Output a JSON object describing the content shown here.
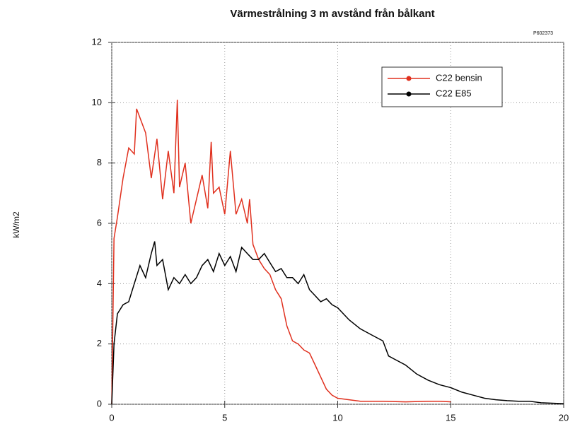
{
  "chart_data": {
    "type": "line",
    "title": "Värmestrålning 3 m avstånd från bålkant",
    "annotation": "P602373",
    "ylabel": "kW/m2",
    "xlim": [
      0,
      20
    ],
    "xticks": [
      0,
      5,
      10,
      15,
      20
    ],
    "ylim": [
      0,
      12
    ],
    "yticks": [
      0,
      2,
      4,
      6,
      8,
      10,
      12
    ],
    "grid": true,
    "legend": "upper right",
    "series": [
      {
        "name": "C22 bensin",
        "color": "#e0301e",
        "x": [
          0,
          0.1,
          0.25,
          0.5,
          0.75,
          1.0,
          1.1,
          1.25,
          1.5,
          1.75,
          2.0,
          2.25,
          2.5,
          2.75,
          2.9,
          3.0,
          3.25,
          3.5,
          3.75,
          4.0,
          4.25,
          4.4,
          4.5,
          4.75,
          5.0,
          5.25,
          5.5,
          5.75,
          6.0,
          6.1,
          6.25,
          6.5,
          6.75,
          7.0,
          7.25,
          7.5,
          7.75,
          8.0,
          8.25,
          8.5,
          8.75,
          9.0,
          9.25,
          9.5,
          9.75,
          10.0,
          10.5,
          11,
          12,
          13,
          14,
          14.5,
          15
        ],
        "values": [
          0,
          5.5,
          6.2,
          7.5,
          8.5,
          8.3,
          9.8,
          9.5,
          9.0,
          7.5,
          8.8,
          6.8,
          8.4,
          7.0,
          10.1,
          7.2,
          8.0,
          6.0,
          6.8,
          7.6,
          6.5,
          8.7,
          7.0,
          7.2,
          6.3,
          8.4,
          6.3,
          6.8,
          6.0,
          6.8,
          5.3,
          4.8,
          4.5,
          4.3,
          3.8,
          3.5,
          2.6,
          2.1,
          2.0,
          1.8,
          1.7,
          1.3,
          0.9,
          0.5,
          0.3,
          0.2,
          0.15,
          0.1,
          0.1,
          0.08,
          0.1,
          0.1,
          0.08
        ]
      },
      {
        "name": "C22 E85",
        "color": "#000000",
        "x": [
          0,
          0.1,
          0.25,
          0.5,
          0.75,
          1.0,
          1.25,
          1.5,
          1.75,
          1.9,
          2.0,
          2.25,
          2.5,
          2.75,
          3.0,
          3.25,
          3.5,
          3.75,
          4.0,
          4.25,
          4.5,
          4.75,
          5.0,
          5.25,
          5.5,
          5.75,
          6.0,
          6.25,
          6.5,
          6.75,
          7.0,
          7.25,
          7.5,
          7.75,
          8.0,
          8.25,
          8.5,
          8.75,
          9.0,
          9.25,
          9.5,
          9.75,
          10.0,
          10.5,
          11.0,
          11.5,
          12.0,
          12.25,
          12.5,
          13.0,
          13.5,
          14.0,
          14.5,
          15.0,
          15.5,
          16.0,
          16.5,
          17.0,
          17.5,
          18.0,
          18.5,
          19,
          20
        ],
        "values": [
          0,
          2.0,
          3.0,
          3.3,
          3.4,
          4.0,
          4.6,
          4.2,
          5.0,
          5.4,
          4.6,
          4.8,
          3.8,
          4.2,
          4.0,
          4.3,
          4.0,
          4.2,
          4.6,
          4.8,
          4.4,
          5.0,
          4.6,
          4.9,
          4.4,
          5.2,
          5.0,
          4.8,
          4.8,
          5.0,
          4.7,
          4.4,
          4.5,
          4.2,
          4.2,
          4.0,
          4.3,
          3.8,
          3.6,
          3.4,
          3.5,
          3.3,
          3.2,
          2.8,
          2.5,
          2.3,
          2.1,
          1.6,
          1.5,
          1.3,
          1.0,
          0.8,
          0.65,
          0.55,
          0.4,
          0.3,
          0.2,
          0.15,
          0.12,
          0.1,
          0.1,
          0.05,
          0.02
        ]
      }
    ]
  }
}
